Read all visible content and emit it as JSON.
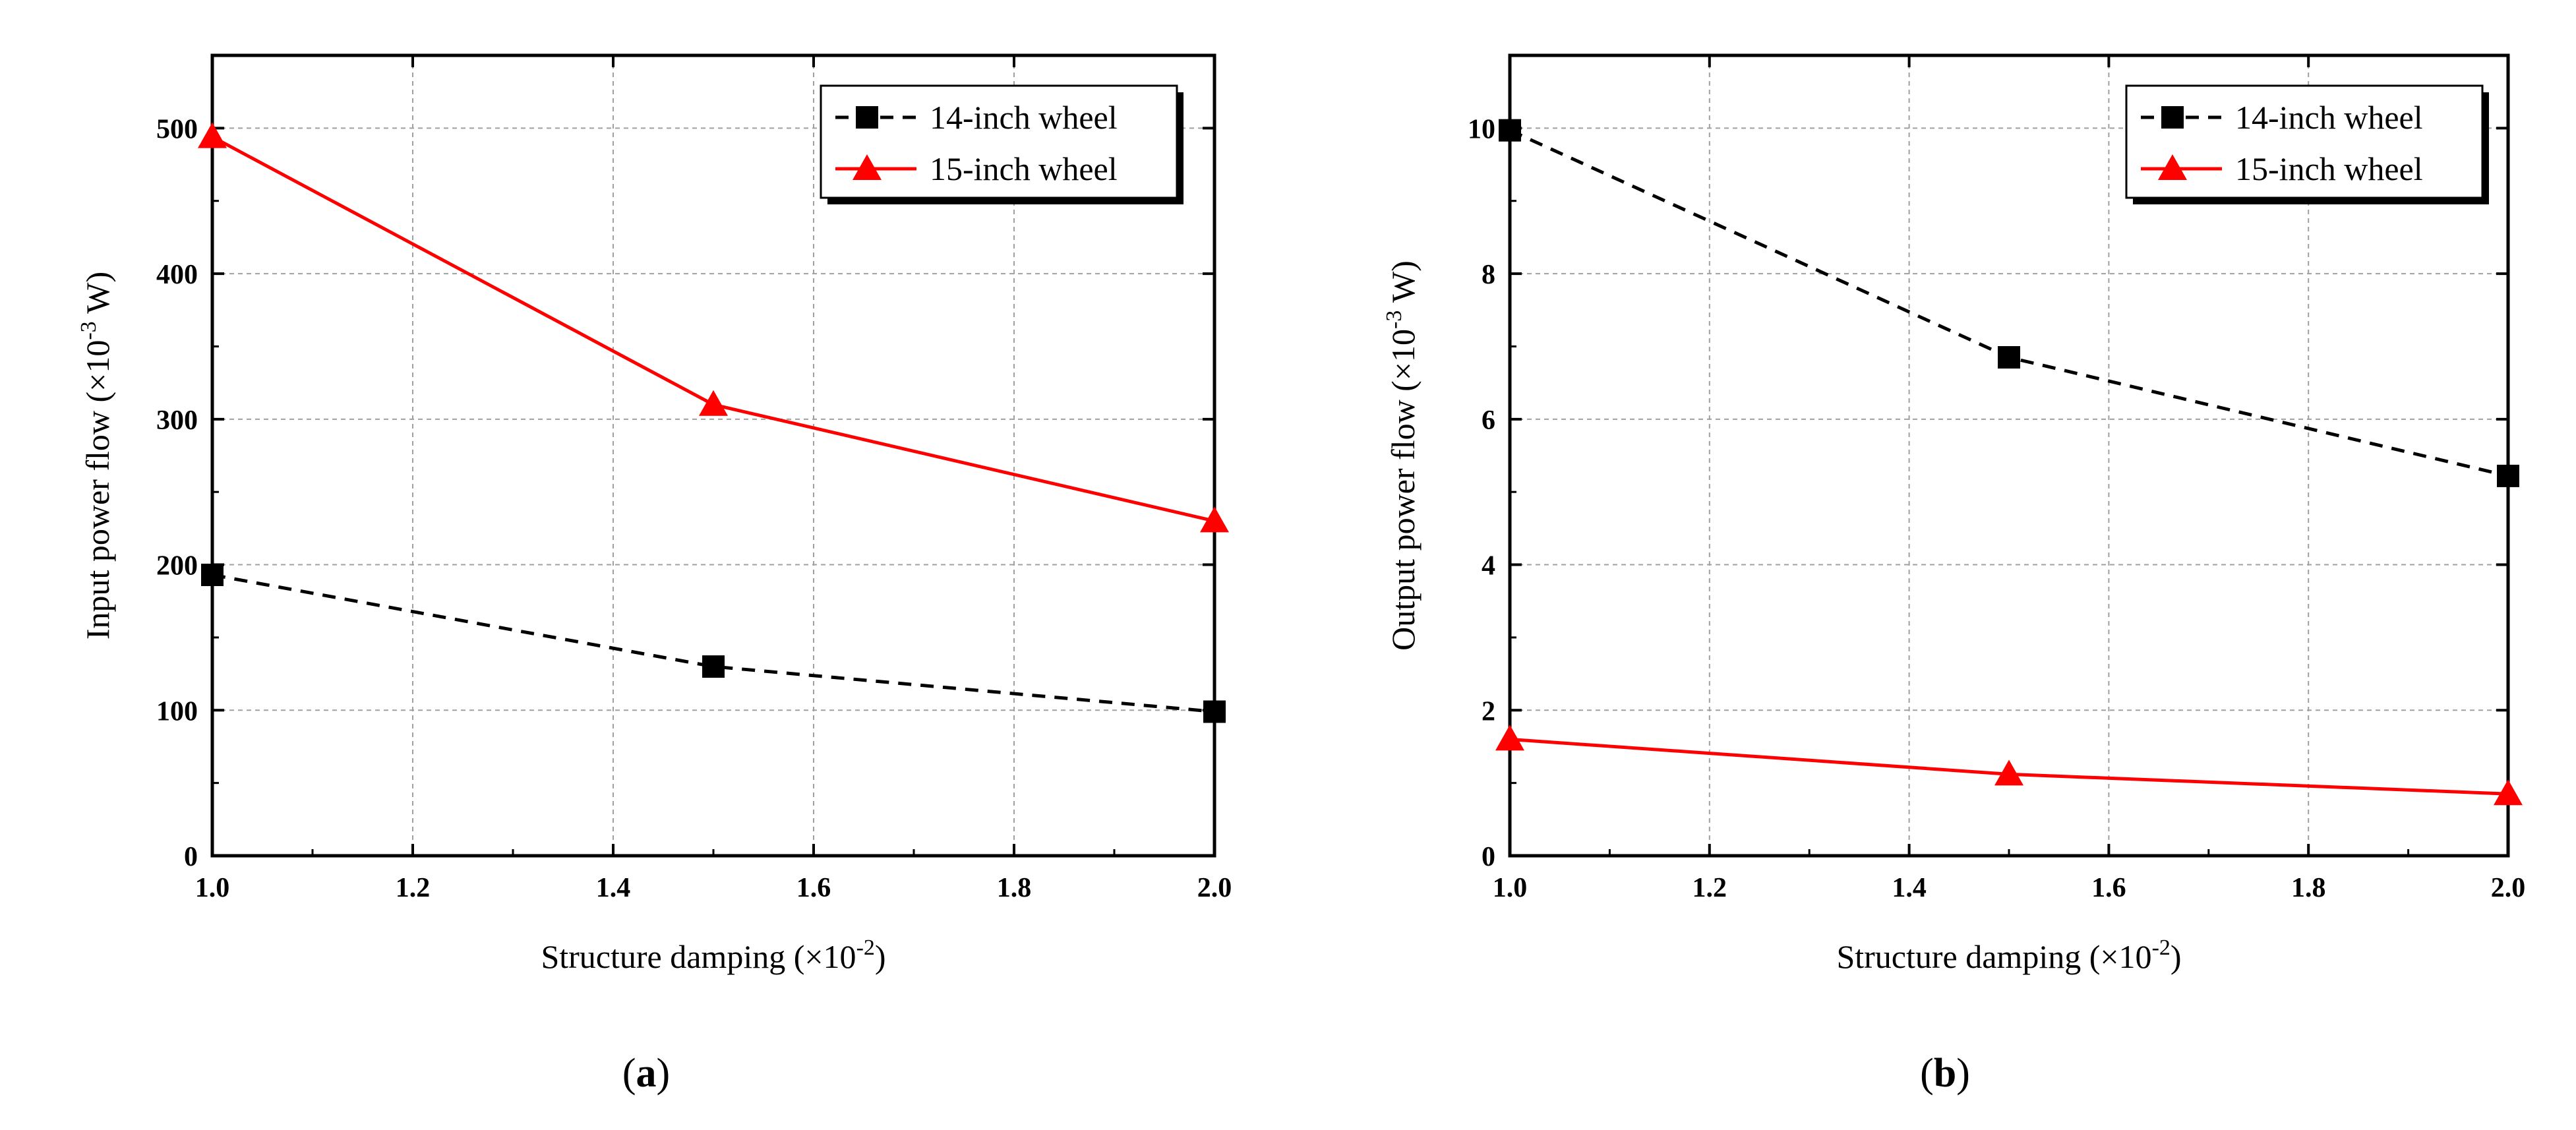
{
  "chart_data": [
    {
      "type": "line",
      "panel_label": "a",
      "xlabel": "Structure damping",
      "xlabel_unit": "(×10",
      "xlabel_exp": "-2",
      "xlabel_close": ")",
      "ylabel": "Input power flow",
      "ylabel_unit": "(×10",
      "ylabel_exp": "-3",
      "ylabel_close": " W)",
      "xlim": [
        1.0,
        2.0
      ],
      "ylim": [
        0,
        550
      ],
      "x_ticks": [
        1.0,
        1.2,
        1.4,
        1.6,
        1.8,
        2.0
      ],
      "x_tick_labels": [
        "1.0",
        "1.2",
        "1.4",
        "1.6",
        "1.8",
        "2.0"
      ],
      "y_ticks": [
        0,
        100,
        200,
        300,
        400,
        500
      ],
      "y_tick_labels": [
        "0",
        "100",
        "200",
        "300",
        "400",
        "500"
      ],
      "grid": true,
      "legend_position": "top-right",
      "x": [
        1.0,
        1.5,
        2.0
      ],
      "series": [
        {
          "name": "14-inch wheel",
          "values": [
            193,
            130,
            99
          ],
          "color": "#000000",
          "marker": "square",
          "line": "dashed"
        },
        {
          "name": "15-inch wheel",
          "values": [
            494,
            310,
            230
          ],
          "color": "#ff0000",
          "marker": "triangle",
          "line": "solid"
        }
      ]
    },
    {
      "type": "line",
      "panel_label": "b",
      "xlabel": "Structure damping",
      "xlabel_unit": "(×10",
      "xlabel_exp": "-2",
      "xlabel_close": ")",
      "ylabel": "Output power flow",
      "ylabel_unit": "(×10",
      "ylabel_exp": "-3",
      "ylabel_close": " W)",
      "xlim": [
        1.0,
        2.0
      ],
      "ylim": [
        0,
        11
      ],
      "x_ticks": [
        1.0,
        1.2,
        1.4,
        1.6,
        1.8,
        2.0
      ],
      "x_tick_labels": [
        "1.0",
        "1.2",
        "1.4",
        "1.6",
        "1.8",
        "2.0"
      ],
      "y_ticks": [
        0,
        2,
        4,
        6,
        8,
        10
      ],
      "y_tick_labels": [
        "0",
        "2",
        "4",
        "6",
        "8",
        "10"
      ],
      "grid": true,
      "legend_position": "top-right",
      "x": [
        1.0,
        1.5,
        2.0
      ],
      "series": [
        {
          "name": "14-inch wheel",
          "values": [
            9.97,
            6.85,
            5.22
          ],
          "color": "#000000",
          "marker": "square",
          "line": "dashed"
        },
        {
          "name": "15-inch wheel",
          "values": [
            1.6,
            1.12,
            0.85
          ],
          "color": "#ff0000",
          "marker": "triangle",
          "line": "solid"
        }
      ]
    }
  ]
}
